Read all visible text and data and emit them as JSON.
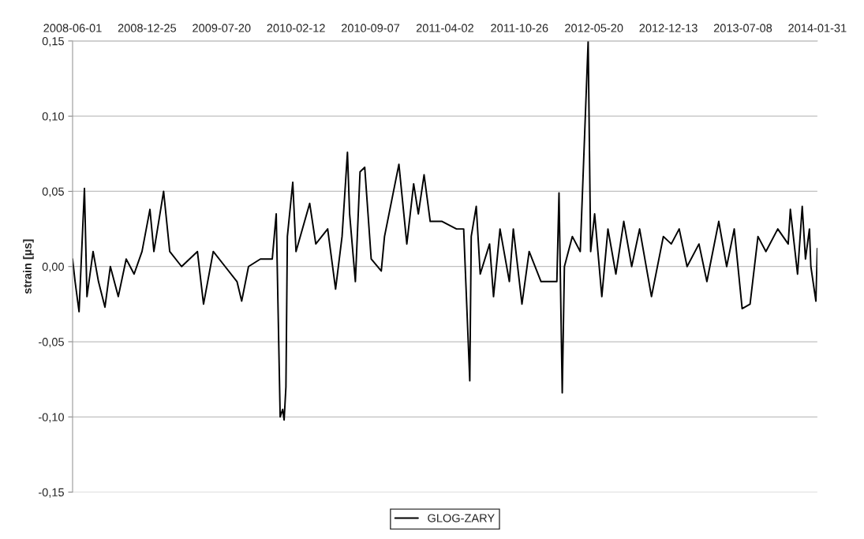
{
  "chart_data": {
    "type": "line",
    "ylabel": "strain [µs]",
    "xlim": [
      "2008-06-01",
      "2014-01-31"
    ],
    "xticks": [
      "2008-06-01",
      "2008-12-25",
      "2009-07-20",
      "2010-02-12",
      "2010-09-07",
      "2011-04-02",
      "2011-10-26",
      "2012-05-20",
      "2012-12-13",
      "2013-07-08",
      "2014-01-31"
    ],
    "ylim": [
      -0.15,
      0.15
    ],
    "yticks": [
      {
        "value": -0.15,
        "label": "-0,15"
      },
      {
        "value": -0.1,
        "label": "-0,10"
      },
      {
        "value": -0.05,
        "label": "-0,05"
      },
      {
        "value": 0,
        "label": "0,00"
      },
      {
        "value": 0.05,
        "label": "0,05"
      },
      {
        "value": 0.1,
        "label": "0,10"
      },
      {
        "value": 0.15,
        "label": "0,15"
      }
    ],
    "grid": "y",
    "legend": "bottom",
    "marker": "none",
    "line_style": "solid",
    "series": [
      {
        "name": "GLOG-ZARY",
        "color": "#000000",
        "x": [
          "2008-06-01",
          "2008-06-08",
          "2008-06-19",
          "2008-07-04",
          "2008-07-11",
          "2008-07-28",
          "2008-08-12",
          "2008-08-30",
          "2008-09-14",
          "2008-10-06",
          "2008-10-28",
          "2008-11-19",
          "2008-12-11",
          "2009-01-02",
          "2009-01-13",
          "2009-02-09",
          "2009-02-26",
          "2009-03-31",
          "2009-05-14",
          "2009-05-31",
          "2009-06-27",
          "2009-07-30",
          "2009-09-01",
          "2009-09-14",
          "2009-10-03",
          "2009-11-05",
          "2009-12-08",
          "2009-12-19",
          "2009-12-30",
          "2010-01-06",
          "2010-01-10",
          "2010-01-15",
          "2010-01-19",
          "2010-02-03",
          "2010-02-12",
          "2010-03-22",
          "2010-04-08",
          "2010-05-11",
          "2010-06-02",
          "2010-06-20",
          "2010-07-05",
          "2010-07-11",
          "2010-07-27",
          "2010-08-09",
          "2010-08-22",
          "2010-09-09",
          "2010-10-07",
          "2010-10-16",
          "2010-11-25",
          "2010-12-17",
          "2011-01-05",
          "2011-01-18",
          "2011-02-03",
          "2011-02-20",
          "2011-03-25",
          "2011-05-04",
          "2011-05-24",
          "2011-06-10",
          "2011-06-14",
          "2011-06-28",
          "2011-07-09",
          "2011-08-04",
          "2011-08-15",
          "2011-09-02",
          "2011-09-28",
          "2011-10-09",
          "2011-11-02",
          "2011-11-22",
          "2011-12-25",
          "2012-02-07",
          "2012-02-13",
          "2012-02-22",
          "2012-02-28",
          "2012-03-21",
          "2012-04-12",
          "2012-05-04",
          "2012-05-11",
          "2012-05-22",
          "2012-06-11",
          "2012-06-28",
          "2012-07-20",
          "2012-08-11",
          "2012-09-02",
          "2012-09-24",
          "2012-10-27",
          "2012-11-29",
          "2012-12-21",
          "2013-01-12",
          "2013-02-03",
          "2013-03-08",
          "2013-03-30",
          "2013-05-02",
          "2013-05-24",
          "2013-06-14",
          "2013-07-06",
          "2013-07-28",
          "2013-08-19",
          "2013-09-10",
          "2013-10-13",
          "2013-11-11",
          "2013-11-17",
          "2013-12-07",
          "2013-12-20",
          "2013-12-29",
          "2014-01-09",
          "2014-01-13",
          "2014-01-27",
          "2014-01-31"
        ],
        "values": [
          0.005,
          -0.01,
          -0.03,
          0.052,
          -0.02,
          0.01,
          -0.01,
          -0.027,
          0.0,
          -0.02,
          0.005,
          -0.005,
          0.01,
          0.038,
          0.01,
          0.05,
          0.01,
          0.0,
          0.01,
          -0.025,
          0.01,
          0.0,
          -0.01,
          -0.023,
          0.0,
          0.005,
          0.005,
          0.035,
          -0.1,
          -0.095,
          -0.102,
          -0.08,
          0.02,
          0.056,
          0.01,
          0.042,
          0.015,
          0.025,
          -0.015,
          0.02,
          0.076,
          0.035,
          -0.01,
          0.063,
          0.066,
          0.005,
          -0.003,
          0.02,
          0.068,
          0.015,
          0.055,
          0.035,
          0.061,
          0.03,
          0.03,
          0.025,
          0.025,
          -0.076,
          0.02,
          0.04,
          -0.005,
          0.015,
          -0.02,
          0.025,
          -0.01,
          0.025,
          -0.025,
          0.01,
          -0.01,
          -0.01,
          0.049,
          -0.084,
          0.0,
          0.02,
          0.01,
          0.15,
          0.01,
          0.035,
          -0.02,
          0.025,
          -0.005,
          0.03,
          0.0,
          0.025,
          -0.02,
          0.02,
          0.015,
          0.025,
          0.0,
          0.015,
          -0.01,
          0.03,
          0.0,
          0.025,
          -0.028,
          -0.025,
          0.02,
          0.01,
          0.025,
          0.015,
          0.038,
          -0.005,
          0.04,
          0.005,
          0.025,
          0.0,
          -0.023,
          0.012
        ]
      }
    ]
  }
}
